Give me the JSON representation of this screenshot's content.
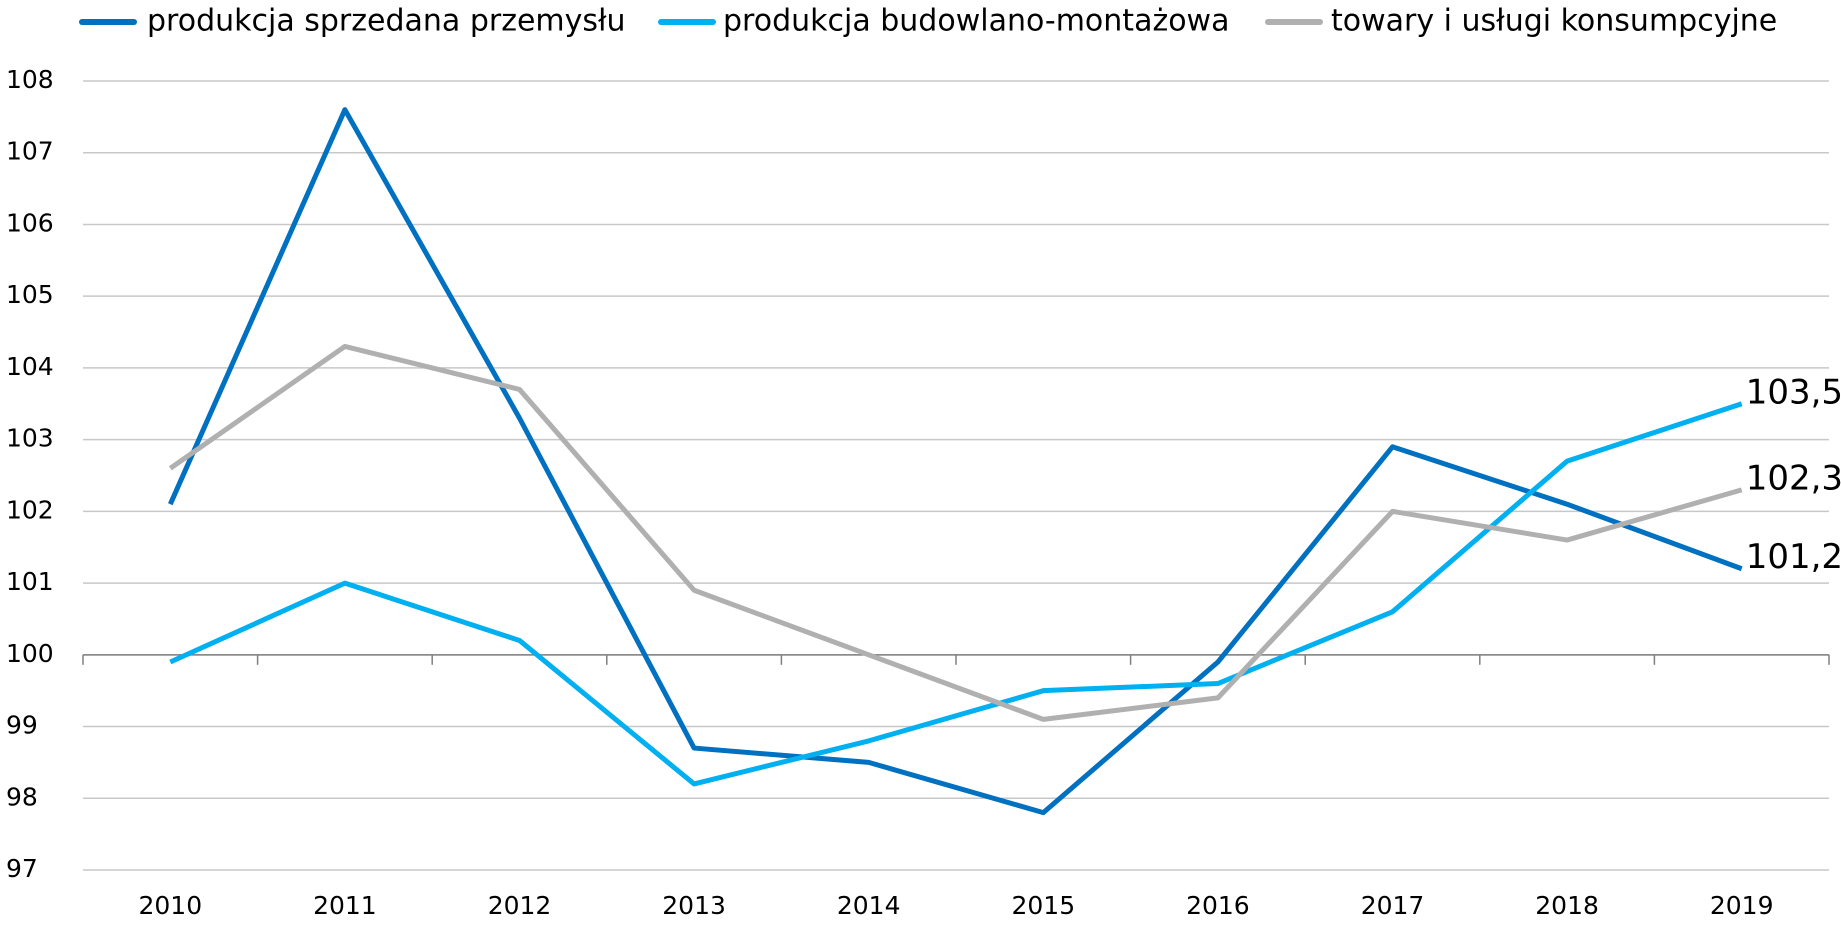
{
  "chart_data": {
    "type": "line",
    "categories": [
      "2010",
      "2011",
      "2012",
      "2013",
      "2014",
      "2015",
      "2016",
      "2017",
      "2018",
      "2019"
    ],
    "series": [
      {
        "name": "produkcja sprzedana przemysłu",
        "color": "#0070c0",
        "values": [
          102.1,
          107.6,
          103.3,
          98.7,
          98.5,
          97.8,
          99.9,
          102.9,
          102.1,
          101.2
        ],
        "value_labels": [
          null,
          null,
          null,
          null,
          null,
          null,
          null,
          null,
          null,
          "101,2"
        ]
      },
      {
        "name": "produkcja budowlano-montażowa",
        "color": "#00b0f0",
        "values": [
          99.9,
          101.0,
          100.2,
          98.2,
          98.8,
          99.5,
          99.6,
          100.6,
          102.7,
          103.5
        ],
        "value_labels": [
          null,
          null,
          null,
          null,
          null,
          null,
          null,
          null,
          null,
          "103,5"
        ]
      },
      {
        "name": "towary i usługi konsumpcyjne",
        "color": "#b0b0b0",
        "values": [
          102.6,
          104.3,
          103.7,
          100.9,
          100.0,
          99.1,
          99.4,
          102.0,
          101.6,
          102.3
        ],
        "value_labels": [
          null,
          null,
          null,
          null,
          null,
          null,
          null,
          null,
          null,
          "102,3"
        ]
      }
    ],
    "ylim": [
      97,
      108
    ],
    "yticks": [
      97,
      98,
      99,
      100,
      101,
      102,
      103,
      104,
      105,
      106,
      107,
      108
    ],
    "x_axis_at": 100,
    "grid": true,
    "legend": "top"
  }
}
